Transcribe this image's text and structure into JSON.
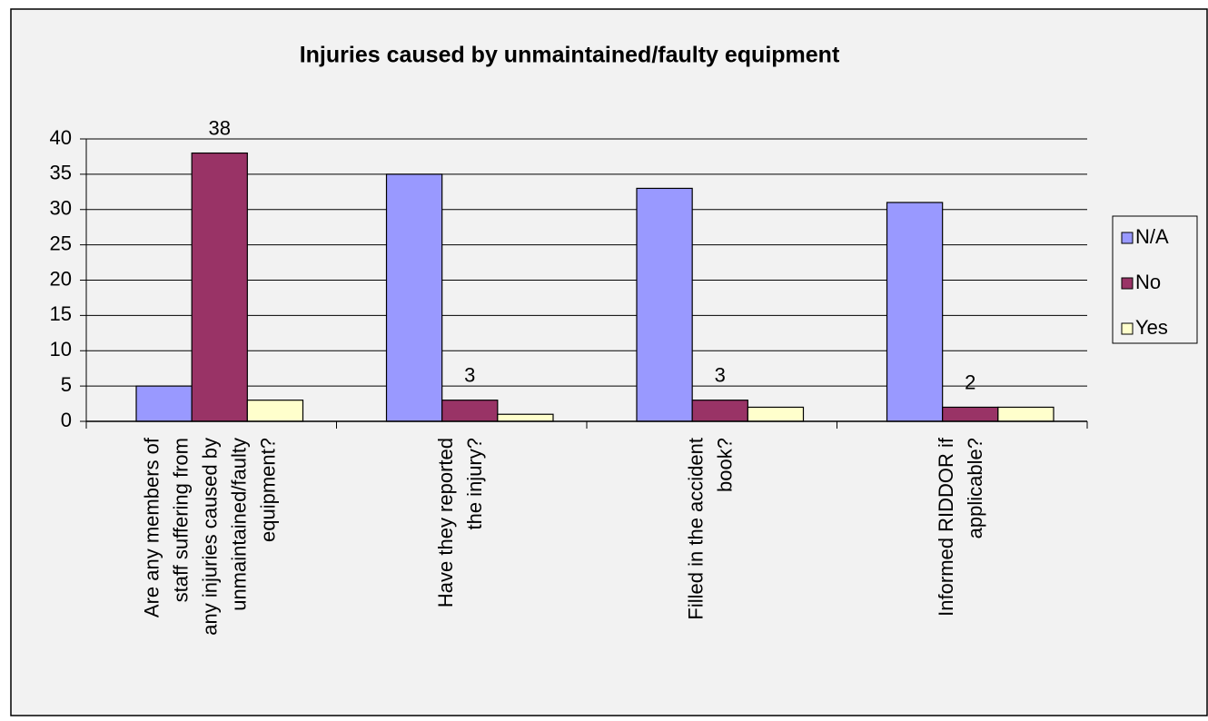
{
  "chart_data": {
    "type": "bar",
    "title": "Injuries caused by unmaintained/faulty equipment",
    "categories": [
      [
        "Are any members of",
        "staff suffering from",
        "any injuries caused by",
        "unmaintained/faulty",
        "equipment?"
      ],
      [
        "Have they reported",
        "the injury?"
      ],
      [
        "Filled in the accident",
        "book?"
      ],
      [
        "Informed RIDDOR if",
        "applicable?"
      ]
    ],
    "series": [
      {
        "name": "N/A",
        "color": "#9999ff",
        "values": [
          5,
          35,
          33,
          31
        ]
      },
      {
        "name": "No",
        "color": "#993366",
        "values": [
          38,
          3,
          3,
          2
        ],
        "data_labels": true
      },
      {
        "name": "Yes",
        "color": "#ffffcc",
        "values": [
          3,
          1,
          2,
          2
        ]
      }
    ],
    "ylim": [
      0,
      40
    ],
    "yticks": [
      0,
      5,
      10,
      15,
      20,
      25,
      30,
      35,
      40
    ],
    "grid": true,
    "legend": "right"
  }
}
